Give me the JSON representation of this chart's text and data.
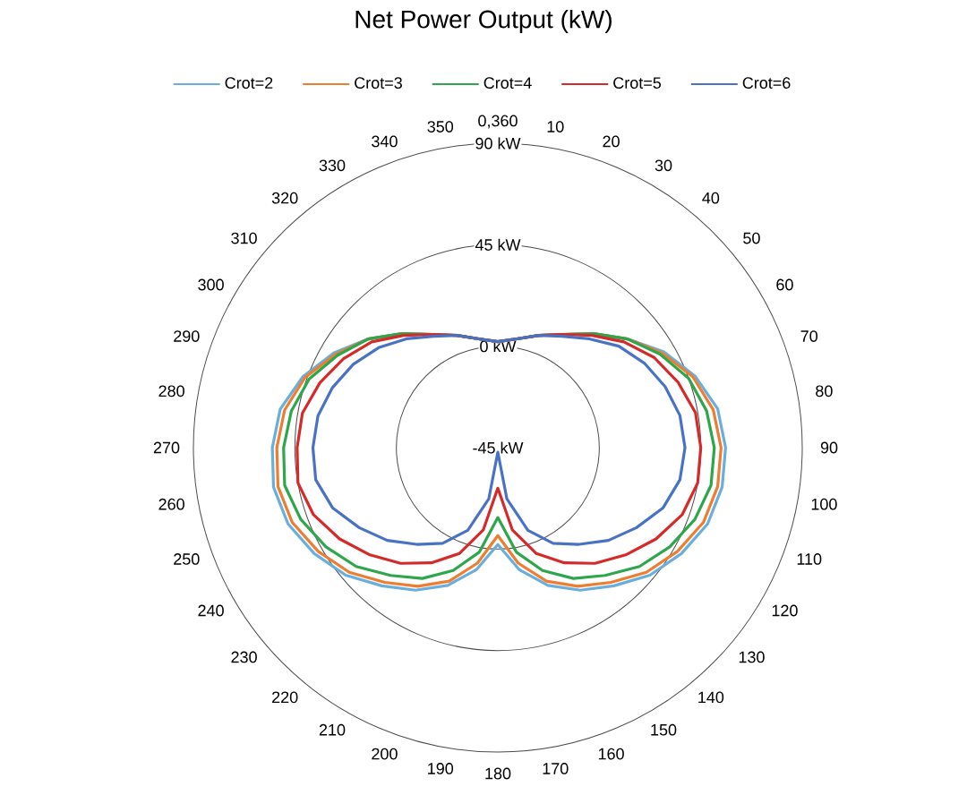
{
  "chart_data": {
    "type": "radar",
    "title": "Net Power Output (kW)",
    "categories": [
      "0,360",
      "10",
      "20",
      "30",
      "40",
      "50",
      "60",
      "70",
      "80",
      "90",
      "100",
      "110",
      "120",
      "130",
      "140",
      "150",
      "160",
      "170",
      "180",
      "190",
      "200",
      "210",
      "220",
      "230",
      "240",
      "250",
      "260",
      "270",
      "280",
      "290",
      "300",
      "310",
      "320",
      "330",
      "340",
      "350"
    ],
    "series": [
      {
        "name": "Crot=2",
        "color": "#6aaedb",
        "values": [
          2,
          4,
          8,
          13,
          21,
          30,
          40,
          48,
          54,
          56,
          56,
          54,
          49,
          43,
          35,
          28,
          20,
          10,
          -2,
          10,
          20,
          28,
          35,
          43,
          49,
          54,
          56,
          55,
          53,
          47,
          39,
          30,
          21,
          13,
          8,
          4
        ]
      },
      {
        "name": "Crot=3",
        "color": "#ed7d31",
        "values": [
          2,
          4,
          8,
          13,
          21,
          30,
          39,
          47,
          52,
          54,
          54,
          52,
          47,
          41,
          33,
          26,
          18,
          7,
          -6,
          7,
          18,
          26,
          33,
          41,
          47,
          52,
          54,
          53,
          51,
          46,
          38,
          30,
          21,
          13,
          8,
          4
        ]
      },
      {
        "name": "Crot=4",
        "color": "#2ea64c",
        "values": [
          2,
          4,
          8,
          13,
          21,
          30,
          38,
          45,
          49,
          51,
          51,
          48,
          43,
          37,
          29,
          22,
          13,
          2,
          -14,
          2,
          13,
          22,
          29,
          37,
          43,
          48,
          51,
          50,
          48,
          44,
          37,
          30,
          21,
          13,
          8,
          4
        ]
      },
      {
        "name": "Crot=5",
        "color": "#d42a2a",
        "values": [
          2,
          4,
          8,
          13,
          20,
          28,
          35,
          40,
          44,
          45,
          45,
          42,
          36,
          29,
          22,
          14,
          5,
          -8,
          -27,
          -8,
          5,
          14,
          22,
          29,
          36,
          42,
          45,
          44,
          43,
          39,
          34,
          28,
          20,
          13,
          8,
          4
        ]
      },
      {
        "name": "Crot=6",
        "color": "#4a72c4",
        "values": [
          2,
          4,
          8,
          12,
          18,
          25,
          30,
          34,
          37,
          38,
          37,
          33,
          26,
          19,
          11,
          4,
          -6,
          -22,
          -43,
          -22,
          -6,
          4,
          11,
          19,
          26,
          33,
          37,
          37,
          36,
          33,
          29,
          24,
          18,
          12,
          8,
          4
        ]
      }
    ],
    "ylim": [
      -45,
      90
    ],
    "yticks": [
      {
        "value": -45,
        "label": "-45 kW"
      },
      {
        "value": 0,
        "label": "0 kW"
      },
      {
        "value": 45,
        "label": "45 kW"
      },
      {
        "value": 90,
        "label": "90 kW"
      }
    ],
    "grid": true,
    "legend": "top"
  }
}
